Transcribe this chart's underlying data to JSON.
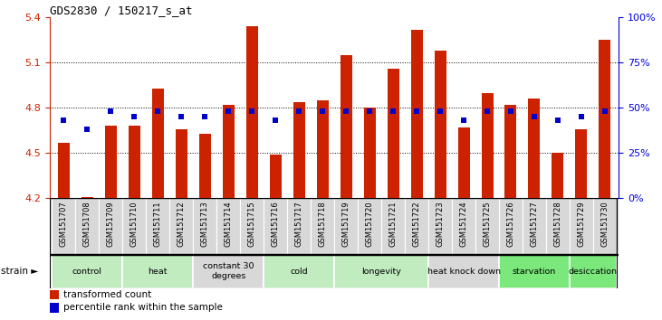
{
  "title": "GDS2830 / 150217_s_at",
  "samples": [
    "GSM151707",
    "GSM151708",
    "GSM151709",
    "GSM151710",
    "GSM151711",
    "GSM151712",
    "GSM151713",
    "GSM151714",
    "GSM151715",
    "GSM151716",
    "GSM151717",
    "GSM151718",
    "GSM151719",
    "GSM151720",
    "GSM151721",
    "GSM151722",
    "GSM151723",
    "GSM151724",
    "GSM151725",
    "GSM151726",
    "GSM151727",
    "GSM151728",
    "GSM151729",
    "GSM151730"
  ],
  "bar_values": [
    4.57,
    4.21,
    4.68,
    4.68,
    4.93,
    4.66,
    4.63,
    4.82,
    5.34,
    4.49,
    4.84,
    4.85,
    5.15,
    4.8,
    5.06,
    5.32,
    5.18,
    4.67,
    4.9,
    4.82,
    4.86,
    4.5,
    4.66,
    5.25
  ],
  "percentile_values": [
    43,
    38,
    48,
    45,
    48,
    45,
    45,
    48,
    48,
    43,
    48,
    48,
    48,
    48,
    48,
    48,
    48,
    43,
    48,
    48,
    45,
    43,
    45,
    48
  ],
  "ylim_left": [
    4.2,
    5.4
  ],
  "ylim_right": [
    0,
    100
  ],
  "yticks_left": [
    4.2,
    4.5,
    4.8,
    5.1,
    5.4
  ],
  "yticks_right": [
    0,
    25,
    50,
    75,
    100
  ],
  "ytick_labels_right": [
    "0%",
    "25%",
    "50%",
    "75%",
    "100%"
  ],
  "bar_color": "#cc2200",
  "dot_color": "#0000cc",
  "bar_width": 0.5,
  "group_defs": [
    {
      "label": "control",
      "indices": [
        0,
        1,
        2
      ],
      "color": "#c0ecc0"
    },
    {
      "label": "heat",
      "indices": [
        3,
        4,
        5
      ],
      "color": "#c0ecc0"
    },
    {
      "label": "constant 30\ndegrees",
      "indices": [
        6,
        7,
        8
      ],
      "color": "#d8d8d8"
    },
    {
      "label": "cold",
      "indices": [
        9,
        10,
        11
      ],
      "color": "#c0ecc0"
    },
    {
      "label": "longevity",
      "indices": [
        12,
        13,
        14,
        15
      ],
      "color": "#c0ecc0"
    },
    {
      "label": "heat knock down",
      "indices": [
        16,
        17,
        18
      ],
      "color": "#d8d8d8"
    },
    {
      "label": "starvation",
      "indices": [
        19,
        20,
        21
      ],
      "color": "#7ae87a"
    },
    {
      "label": "desiccation",
      "indices": [
        22,
        23
      ],
      "color": "#7ae87a"
    }
  ],
  "xtick_bg": "#d8d8d8",
  "axis_color": "#cc2200",
  "right_axis_color": "#0000dd",
  "grid_yticks": [
    4.5,
    4.8,
    5.1
  ]
}
